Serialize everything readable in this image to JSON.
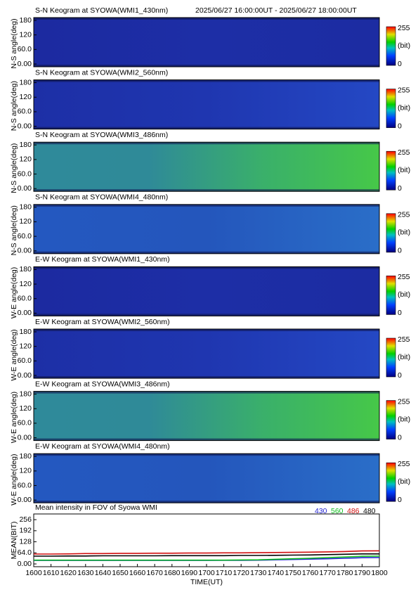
{
  "chart_data": [
    {
      "type": "keogram",
      "title": "S-N Keogram at SYOWA(WMI1_430nm)",
      "subtitle": "2025/06/27 16:00:00UT - 2025/06/27 18:00:00UT",
      "ylabel": "N-S angle(deg)",
      "ylim": [
        0,
        180
      ],
      "yticks": [
        {
          "value": 0,
          "label": "0.00"
        },
        {
          "value": 60,
          "label": "60.0"
        },
        120,
        180
      ],
      "colorbar_labels": [
        "255",
        "(bit)",
        "0"
      ],
      "colors": [
        "#1c2aa0",
        "#1d2ea6",
        "#1c2ca2"
      ]
    },
    {
      "type": "keogram",
      "title": "S-N Keogram at SYOWA(WMI2_560nm)",
      "ylabel": "N-S angle(deg)",
      "ylim": [
        0,
        180
      ],
      "yticks": [
        {
          "value": 0,
          "label": "0.00"
        },
        {
          "value": 60,
          "label": "60.0"
        },
        120,
        180
      ],
      "colorbar_labels": [
        "255",
        "(bit)",
        "0"
      ],
      "colors": [
        "#1d2fa6",
        "#1f36b0",
        "#2448c4"
      ]
    },
    {
      "type": "keogram",
      "title": "S-N Keogram at SYOWA(WMI3_486nm)",
      "ylabel": "N-S angle(deg)",
      "ylim": [
        0,
        180
      ],
      "yticks": [
        {
          "value": 0,
          "label": "0.00"
        },
        {
          "value": 60,
          "label": "60.0"
        },
        120,
        180
      ],
      "colorbar_labels": [
        "255",
        "(bit)",
        "0"
      ],
      "colors": [
        "#2f8a9a",
        "#2f8a98",
        "#3ab06a",
        "#46c848"
      ]
    },
    {
      "type": "keogram",
      "title": "S-N Keogram at SYOWA(WMI4_480nm)",
      "ylabel": "N-S angle(deg)",
      "ylim": [
        0,
        180
      ],
      "yticks": [
        {
          "value": 0,
          "label": "0.00"
        },
        {
          "value": 60,
          "label": "60.0"
        },
        120,
        180
      ],
      "colorbar_labels": [
        "255",
        "(bit)",
        "0"
      ],
      "colors": [
        "#2458c0",
        "#2456bc",
        "#2a6ec8"
      ]
    },
    {
      "type": "keogram",
      "title": "E-W Keogram at SYOWA(WMI1_430nm)",
      "ylabel": "W-E angle(deg)",
      "ylim": [
        0,
        180
      ],
      "yticks": [
        {
          "value": 0,
          "label": "0.00"
        },
        {
          "value": 60,
          "label": "60.0"
        },
        120,
        180
      ],
      "colorbar_labels": [
        "255",
        "(bit)",
        "0"
      ],
      "colors": [
        "#1c2aa0",
        "#1d2ea6",
        "#1c2ca2"
      ]
    },
    {
      "type": "keogram",
      "title": "E-W Keogram at SYOWA(WMI2_560nm)",
      "ylabel": "W-E angle(deg)",
      "ylim": [
        0,
        180
      ],
      "yticks": [
        {
          "value": 0,
          "label": "0.00"
        },
        {
          "value": 60,
          "label": "60.0"
        },
        120,
        180
      ],
      "colorbar_labels": [
        "255",
        "(bit)",
        "0"
      ],
      "colors": [
        "#1d2fa6",
        "#1f36b0",
        "#2448c4"
      ]
    },
    {
      "type": "keogram",
      "title": "E-W Keogram at SYOWA(WMI3_486nm)",
      "ylabel": "W-E angle(deg)",
      "ylim": [
        0,
        180
      ],
      "yticks": [
        {
          "value": 0,
          "label": "0.00"
        },
        {
          "value": 60,
          "label": "60.0"
        },
        120,
        180
      ],
      "colorbar_labels": [
        "255",
        "(bit)",
        "0"
      ],
      "colors": [
        "#2f8a9a",
        "#2f8a98",
        "#3ab06a",
        "#46c848"
      ]
    },
    {
      "type": "keogram",
      "title": "E-W Keogram at SYOWA(WMI4_480nm)",
      "ylabel": "W-E angle(deg)",
      "ylim": [
        0,
        180
      ],
      "yticks": [
        {
          "value": 0,
          "label": "0.00"
        },
        {
          "value": 60,
          "label": "60.0"
        },
        120,
        180
      ],
      "colorbar_labels": [
        "255",
        "(bit)",
        "0"
      ],
      "colors": [
        "#2458c0",
        "#2456bc",
        "#2a6ec8"
      ]
    },
    {
      "type": "line",
      "title": "Mean intensity in FOV of Syowa WMI",
      "xlabel": "TIME(UT)",
      "ylabel": "MEAN(BIT)",
      "legend": "top-right",
      "xlim": [
        1600,
        1800
      ],
      "xticks": [
        1600,
        1610,
        1620,
        1630,
        1640,
        1650,
        1660,
        1670,
        1680,
        1690,
        1700,
        1710,
        1720,
        1730,
        1740,
        1750,
        1760,
        1770,
        1780,
        1790,
        1800
      ],
      "ylim": [
        -16,
        289
      ],
      "yticks": [
        {
          "value": 0,
          "label": "0.00"
        },
        {
          "value": 64,
          "label": "64.0"
        },
        128,
        192,
        256
      ],
      "x": [
        1600,
        1610,
        1620,
        1630,
        1640,
        1650,
        1660,
        1670,
        1680,
        1690,
        1700,
        1710,
        1720,
        1730,
        1740,
        1750,
        1760,
        1770,
        1780,
        1790,
        1800
      ],
      "series": [
        {
          "name": "430",
          "color": "#1f1fd0",
          "values": [
            20,
            20,
            20,
            20,
            20,
            20,
            20,
            20,
            20,
            20,
            20,
            21,
            21,
            22,
            24,
            26,
            28,
            30,
            33,
            36,
            37
          ]
        },
        {
          "name": "560",
          "color": "#10c020",
          "values": [
            22,
            22,
            22,
            22,
            22,
            22,
            22,
            22,
            22,
            22,
            22,
            22,
            23,
            24,
            27,
            30,
            33,
            37,
            40,
            44,
            45
          ]
        },
        {
          "name": "486",
          "color": "#d01010",
          "values": [
            57,
            57,
            58,
            60,
            60,
            61,
            61,
            62,
            62,
            63,
            63,
            64,
            64,
            65,
            66,
            67,
            68,
            70,
            72,
            75,
            76
          ]
        },
        {
          "name": "480",
          "color": "#000000",
          "values": [
            45,
            45,
            46,
            46,
            47,
            47,
            47,
            47,
            48,
            48,
            48,
            48,
            49,
            49,
            50,
            51,
            52,
            54,
            56,
            58,
            58
          ]
        }
      ]
    }
  ]
}
